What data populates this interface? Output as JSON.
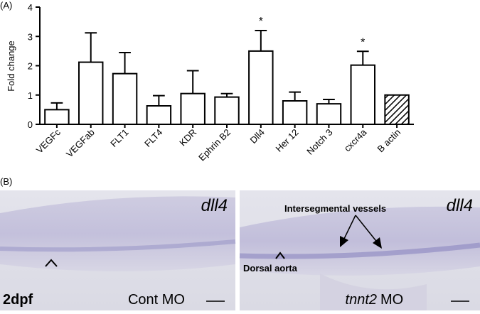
{
  "chart_data": {
    "type": "bar",
    "panel_label": "(A)",
    "y_label": "Fold change",
    "categories": [
      "VEGFc",
      "VEGFab",
      "FLT1",
      "FLT4",
      "KDR",
      "Ephrin B2",
      "Dll4",
      "Her 12",
      "Notch 3",
      "cxcr4a",
      "B actin"
    ],
    "values": [
      0.5,
      2.12,
      1.73,
      0.63,
      1.05,
      0.93,
      2.5,
      0.8,
      0.7,
      2.02,
      1.0
    ],
    "errors": [
      0.23,
      1.0,
      0.72,
      0.35,
      0.78,
      0.12,
      0.7,
      0.3,
      0.15,
      0.47,
      0
    ],
    "hatched": [
      false,
      false,
      false,
      false,
      false,
      false,
      false,
      false,
      false,
      false,
      true
    ],
    "color": "#ffffff",
    "annotations": [
      {
        "text": "*",
        "category": "Dll4"
      },
      {
        "text": "*",
        "category": "cxcr4a"
      }
    ],
    "ylim": [
      0,
      4
    ],
    "yticks": [
      0,
      1,
      2,
      3,
      4
    ]
  },
  "panel_b": {
    "label": "(B)",
    "left": {
      "gene": "dll4",
      "stage": "2dpf",
      "condition": "Cont MO"
    },
    "right": {
      "gene": "dll4",
      "condition_gene": "tnnt2",
      "condition": "MO",
      "vessel_label": "Intersegmental vessels",
      "aorta_label": "Dorsal aorta"
    }
  }
}
